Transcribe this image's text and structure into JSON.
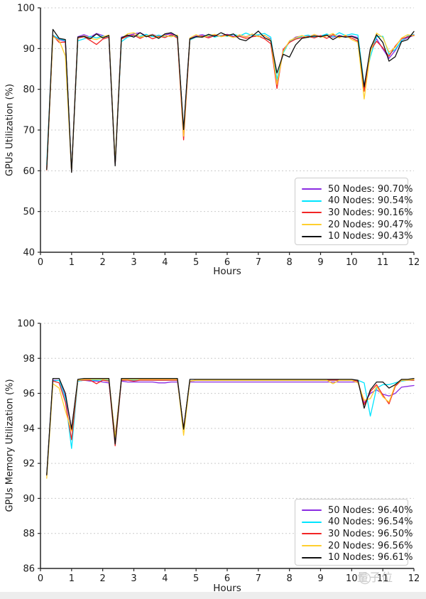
{
  "page": {
    "background": "#ffffff",
    "watermark": {
      "text": "量子位",
      "icon": "qbitai-mascot-icon",
      "color": "#bcbcbc"
    }
  },
  "chart_data": [
    {
      "type": "line",
      "title": "",
      "xlabel": "Hours",
      "ylabel": "GPUs Utilization (%)",
      "xlim": [
        0,
        12
      ],
      "ylim": [
        40,
        100
      ],
      "xticks": [
        0,
        1,
        2,
        3,
        4,
        5,
        6,
        7,
        8,
        9,
        10,
        11,
        12
      ],
      "yticks": [
        40,
        50,
        60,
        70,
        80,
        90,
        100
      ],
      "grid": "horizontal-dashed",
      "grid_color": "#cccccc",
      "legend_position": "lower right",
      "x": [
        0.2,
        0.4,
        0.6,
        0.8,
        1.0,
        1.2,
        1.4,
        1.6,
        1.8,
        2.0,
        2.2,
        2.4,
        2.6,
        2.8,
        3.0,
        3.2,
        3.4,
        3.6,
        3.8,
        4.0,
        4.2,
        4.4,
        4.6,
        4.8,
        5.0,
        5.2,
        5.4,
        5.6,
        5.8,
        6.0,
        6.2,
        6.4,
        6.6,
        6.8,
        7.0,
        7.2,
        7.4,
        7.6,
        7.8,
        8.0,
        8.2,
        8.4,
        8.6,
        8.8,
        9.0,
        9.2,
        9.4,
        9.6,
        9.8,
        10.0,
        10.2,
        10.4,
        10.6,
        10.8,
        11.0,
        11.2,
        11.4,
        11.6,
        11.8,
        12.0
      ],
      "series": [
        {
          "name": "50 Nodes",
          "legend_label": "50 Nodes: 90.70%",
          "avg_percent": 90.7,
          "color": "#8a2be2",
          "y": [
            60.4,
            93.1,
            92.2,
            91.8,
            59.9,
            92.9,
            93.4,
            92.8,
            93.7,
            93.2,
            92.6,
            61.6,
            92.8,
            93.2,
            93.6,
            93.9,
            93.1,
            93.5,
            92.9,
            93.3,
            93.7,
            92.8,
            69.9,
            92.5,
            93.1,
            93.4,
            92.9,
            93.3,
            93.1,
            93.5,
            93.0,
            93.3,
            92.9,
            93.4,
            93.0,
            93.2,
            92.3,
            81.5,
            89.6,
            91.7,
            92.8,
            93.1,
            92.9,
            93.4,
            93.0,
            93.3,
            92.8,
            93.2,
            92.9,
            93.1,
            92.7,
            80.4,
            89.8,
            92.4,
            89.9,
            87.6,
            89.5,
            92.0,
            92.7,
            93.2
          ]
        },
        {
          "name": "40 Nodes",
          "legend_label": "40 Nodes: 90.54%",
          "avg_percent": 90.54,
          "color": "#00e5ff",
          "y": [
            61.6,
            93.3,
            92.4,
            91.9,
            60.0,
            91.9,
            92.4,
            93.0,
            92.6,
            93.1,
            92.7,
            61.8,
            91.7,
            92.8,
            93.2,
            93.0,
            93.5,
            92.9,
            93.3,
            92.8,
            93.2,
            92.9,
            69.8,
            92.1,
            92.8,
            93.0,
            93.3,
            92.8,
            93.2,
            93.0,
            93.5,
            93.1,
            93.8,
            93.2,
            93.4,
            93.7,
            92.8,
            82.4,
            88.9,
            91.8,
            92.5,
            93.0,
            93.3,
            92.8,
            93.1,
            93.6,
            92.9,
            93.9,
            93.2,
            93.6,
            93.3,
            81.0,
            88.0,
            92.9,
            93.0,
            88.6,
            89.8,
            91.9,
            93.1,
            93.4
          ]
        },
        {
          "name": "30 Nodes",
          "legend_label": "30 Nodes: 90.16%",
          "avg_percent": 90.16,
          "color": "#f22525",
          "y": [
            60.2,
            93.2,
            91.5,
            91.6,
            59.7,
            92.6,
            92.9,
            92.0,
            91.0,
            92.3,
            92.8,
            61.5,
            92.4,
            93.0,
            93.3,
            92.5,
            93.2,
            92.4,
            93.0,
            92.7,
            93.4,
            92.6,
            67.6,
            92.3,
            92.9,
            93.1,
            92.6,
            93.2,
            93.0,
            93.4,
            92.8,
            93.0,
            92.5,
            92.9,
            93.1,
            92.4,
            91.2,
            80.2,
            89.8,
            91.5,
            92.3,
            92.7,
            93.0,
            92.6,
            93.2,
            92.5,
            93.4,
            92.8,
            93.1,
            92.6,
            91.8,
            79.5,
            89.5,
            91.8,
            90.2,
            88.1,
            90.6,
            92.4,
            92.9,
            93.3
          ]
        },
        {
          "name": "20 Nodes",
          "legend_label": "20 Nodes: 90.47%",
          "avg_percent": 90.47,
          "color": "#ffcf2e",
          "y": [
            60.3,
            92.9,
            92.0,
            88.2,
            59.8,
            92.7,
            93.1,
            92.5,
            92.2,
            92.9,
            93.3,
            61.9,
            92.5,
            93.6,
            93.9,
            92.8,
            93.1,
            93.4,
            92.7,
            93.2,
            92.9,
            93.3,
            68.5,
            92.6,
            93.4,
            92.8,
            93.1,
            93.5,
            92.9,
            93.2,
            92.7,
            93.4,
            92.8,
            93.6,
            92.9,
            93.3,
            92.0,
            81.2,
            89.3,
            91.9,
            92.6,
            93.2,
            92.7,
            93.5,
            92.8,
            93.1,
            93.7,
            92.6,
            93.3,
            92.2,
            91.5,
            77.6,
            89.0,
            93.8,
            92.7,
            89.1,
            90.3,
            92.6,
            93.4,
            93.1
          ]
        },
        {
          "name": "10 Nodes",
          "legend_label": "10 Nodes: 90.43%",
          "avg_percent": 90.43,
          "color": "#111111",
          "y": [
            60.3,
            94.7,
            92.5,
            92.2,
            59.6,
            92.8,
            93.0,
            92.4,
            93.6,
            92.6,
            93.2,
            61.2,
            92.6,
            93.3,
            92.8,
            93.9,
            92.9,
            93.3,
            92.5,
            93.6,
            93.9,
            93.0,
            70.1,
            92.4,
            92.9,
            92.8,
            93.5,
            93.0,
            93.9,
            93.2,
            93.6,
            92.3,
            91.9,
            93.0,
            94.3,
            92.7,
            91.9,
            84.0,
            88.6,
            87.9,
            90.9,
            92.5,
            92.8,
            93.1,
            92.9,
            93.3,
            92.2,
            93.1,
            92.8,
            93.0,
            92.4,
            80.6,
            90.0,
            93.4,
            91.5,
            86.9,
            88.0,
            91.7,
            92.2,
            94.2
          ]
        }
      ]
    },
    {
      "type": "line",
      "title": "",
      "xlabel": "Hours",
      "ylabel": "GPUs Memory Utilization (%)",
      "xlim": [
        0,
        12
      ],
      "ylim": [
        86,
        100
      ],
      "xticks": [
        0,
        1,
        2,
        3,
        4,
        5,
        6,
        7,
        8,
        9,
        10,
        11,
        12
      ],
      "yticks": [
        86,
        88,
        90,
        92,
        94,
        96,
        98,
        100
      ],
      "grid": "horizontal-dashed",
      "grid_color": "#cccccc",
      "legend_position": "lower right",
      "x": [
        0.2,
        0.4,
        0.6,
        0.8,
        1.0,
        1.2,
        1.4,
        1.6,
        1.8,
        2.0,
        2.2,
        2.4,
        2.6,
        2.8,
        3.0,
        3.2,
        3.4,
        3.6,
        3.8,
        4.0,
        4.2,
        4.4,
        4.6,
        4.8,
        5.0,
        5.2,
        5.4,
        5.6,
        5.8,
        6.0,
        6.2,
        6.4,
        6.6,
        6.8,
        7.0,
        7.2,
        7.4,
        7.6,
        7.8,
        8.0,
        8.2,
        8.4,
        8.6,
        8.8,
        9.0,
        9.2,
        9.4,
        9.6,
        9.8,
        10.0,
        10.2,
        10.4,
        10.6,
        10.8,
        11.0,
        11.2,
        11.4,
        11.6,
        11.8,
        12.0
      ],
      "series": [
        {
          "name": "50 Nodes",
          "legend_label": "50 Nodes: 96.40%",
          "avg_percent": 96.4,
          "color": "#8a2be2",
          "y": [
            91.3,
            96.75,
            96.75,
            95.8,
            94.0,
            96.7,
            96.75,
            96.7,
            96.7,
            96.65,
            96.6,
            93.6,
            96.7,
            96.65,
            96.65,
            96.65,
            96.65,
            96.65,
            96.6,
            96.6,
            96.65,
            96.65,
            94.0,
            96.65,
            96.65,
            96.65,
            96.65,
            96.65,
            96.65,
            96.65,
            96.65,
            96.65,
            96.65,
            96.65,
            96.65,
            96.65,
            96.65,
            96.65,
            96.65,
            96.65,
            96.65,
            96.65,
            96.65,
            96.65,
            96.65,
            96.65,
            96.65,
            96.65,
            96.65,
            96.65,
            96.65,
            95.45,
            96.0,
            96.2,
            95.95,
            95.85,
            96.0,
            96.35,
            96.4,
            96.45
          ]
        },
        {
          "name": "40 Nodes",
          "legend_label": "40 Nodes: 96.54%",
          "avg_percent": 96.54,
          "color": "#00e5ff",
          "y": [
            91.3,
            96.7,
            96.75,
            95.7,
            92.85,
            96.7,
            96.75,
            96.75,
            96.75,
            96.75,
            96.75,
            93.25,
            96.75,
            96.75,
            96.75,
            96.75,
            96.75,
            96.75,
            96.75,
            96.75,
            96.75,
            96.75,
            94.0,
            96.7,
            96.75,
            96.75,
            96.75,
            96.75,
            96.75,
            96.75,
            96.75,
            96.75,
            96.75,
            96.75,
            96.75,
            96.75,
            96.75,
            96.75,
            96.75,
            96.75,
            96.75,
            96.75,
            96.75,
            96.75,
            96.75,
            96.75,
            96.75,
            96.75,
            96.75,
            96.75,
            96.75,
            96.6,
            94.7,
            96.3,
            96.5,
            96.5,
            96.6,
            96.7,
            96.75,
            96.75
          ]
        },
        {
          "name": "30 Nodes",
          "legend_label": "30 Nodes: 96.50%",
          "avg_percent": 96.5,
          "color": "#f22525",
          "y": [
            91.3,
            96.7,
            96.6,
            95.5,
            93.35,
            96.75,
            96.75,
            96.75,
            96.55,
            96.75,
            96.7,
            93.0,
            96.75,
            96.75,
            96.7,
            96.75,
            96.75,
            96.75,
            96.75,
            96.75,
            96.75,
            96.75,
            94.0,
            96.7,
            96.75,
            96.75,
            96.75,
            96.75,
            96.75,
            96.75,
            96.75,
            96.75,
            96.75,
            96.75,
            96.75,
            96.75,
            96.75,
            96.75,
            96.75,
            96.75,
            96.75,
            96.75,
            96.75,
            96.75,
            96.75,
            96.75,
            96.75,
            96.75,
            96.75,
            96.75,
            96.7,
            95.35,
            96.1,
            96.5,
            95.9,
            95.4,
            96.4,
            96.75,
            96.75,
            96.75
          ]
        },
        {
          "name": "20 Nodes",
          "legend_label": "20 Nodes: 96.56%",
          "avg_percent": 96.56,
          "color": "#ffcf2e",
          "y": [
            91.15,
            96.55,
            96.3,
            95.0,
            93.85,
            96.75,
            96.8,
            96.8,
            96.8,
            96.8,
            96.8,
            93.5,
            96.8,
            96.8,
            96.8,
            96.8,
            96.8,
            96.8,
            96.8,
            96.8,
            96.8,
            96.8,
            93.6,
            96.7,
            96.75,
            96.75,
            96.75,
            96.75,
            96.75,
            96.75,
            96.75,
            96.75,
            96.75,
            96.75,
            96.75,
            96.75,
            96.75,
            96.75,
            96.75,
            96.75,
            96.75,
            96.75,
            96.75,
            96.75,
            96.75,
            96.75,
            96.55,
            96.75,
            96.75,
            96.75,
            96.6,
            95.6,
            95.7,
            96.4,
            95.8,
            95.5,
            96.5,
            96.75,
            96.75,
            96.8
          ]
        },
        {
          "name": "10 Nodes",
          "legend_label": "10 Nodes: 96.61%",
          "avg_percent": 96.61,
          "color": "#111111",
          "y": [
            91.35,
            96.85,
            96.85,
            96.0,
            93.95,
            96.8,
            96.85,
            96.85,
            96.85,
            96.85,
            96.85,
            93.1,
            96.85,
            96.85,
            96.85,
            96.85,
            96.85,
            96.85,
            96.85,
            96.85,
            96.85,
            96.85,
            93.95,
            96.8,
            96.8,
            96.8,
            96.8,
            96.8,
            96.8,
            96.8,
            96.8,
            96.8,
            96.8,
            96.8,
            96.8,
            96.8,
            96.8,
            96.8,
            96.8,
            96.8,
            96.8,
            96.8,
            96.8,
            96.8,
            96.8,
            96.8,
            96.8,
            96.8,
            96.8,
            96.8,
            96.75,
            95.15,
            96.2,
            96.65,
            96.65,
            96.3,
            96.5,
            96.8,
            96.8,
            96.85
          ]
        }
      ]
    }
  ]
}
